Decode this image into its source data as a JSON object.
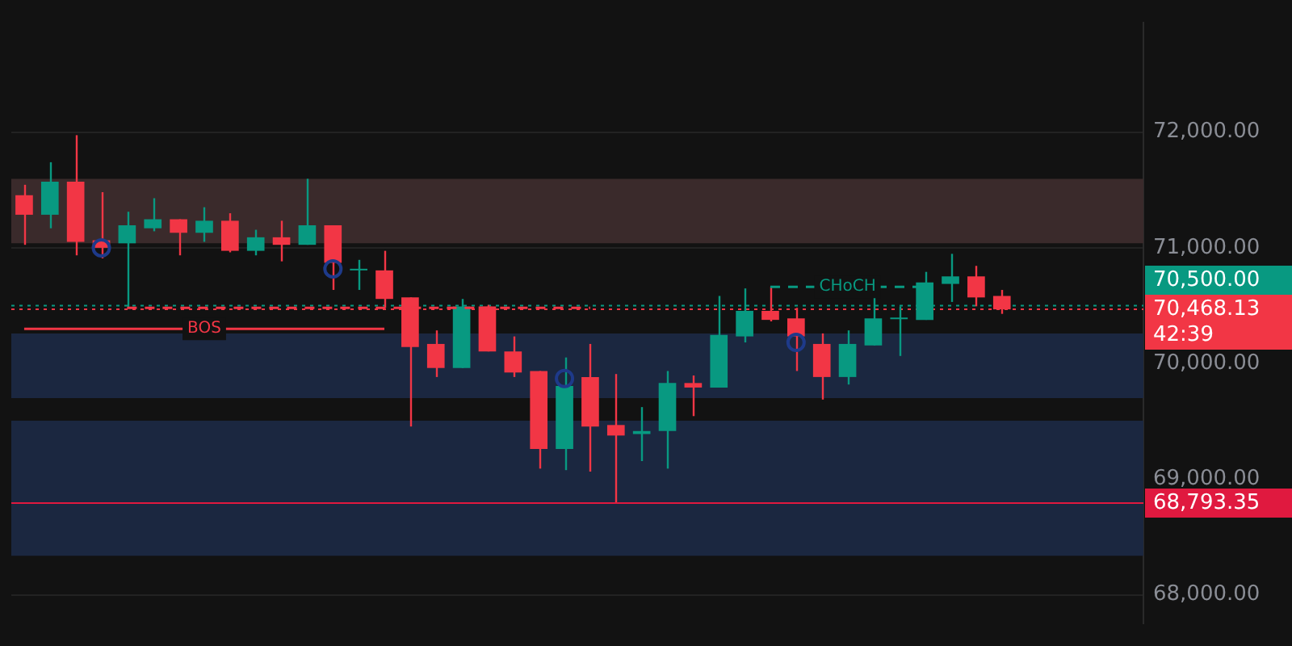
{
  "chart_data": {
    "type": "candlestick",
    "categories": [
      null,
      null,
      null,
      null,
      null,
      null,
      null,
      null,
      null,
      null,
      null,
      null,
      null,
      null,
      null,
      null,
      null,
      null,
      null,
      null,
      null,
      null,
      null,
      null,
      null,
      null,
      null,
      null,
      null,
      null,
      null,
      null,
      null,
      null,
      null,
      null,
      null,
      null,
      null,
      null,
      null,
      null,
      null,
      null
    ],
    "ohlc": [
      [
        71455,
        71545,
        71026,
        71286
      ],
      [
        71286,
        71740,
        71169,
        71571
      ],
      [
        71571,
        71974,
        70935,
        71052
      ],
      [
        71065,
        71481,
        70909,
        71000
      ],
      [
        71039,
        71312,
        70481,
        71195
      ],
      [
        71169,
        71429,
        71143,
        71247
      ],
      [
        71247,
        71247,
        70935,
        71130
      ],
      [
        71130,
        71351,
        71052,
        71234
      ],
      [
        71234,
        71299,
        70961,
        70974
      ],
      [
        70974,
        71156,
        70935,
        71091
      ],
      [
        71091,
        71234,
        70883,
        71026
      ],
      [
        71026,
        71597,
        71026,
        71195
      ],
      [
        71195,
        71195,
        70636,
        70870
      ],
      [
        70805,
        70896,
        70636,
        70818
      ],
      [
        70805,
        70974,
        70481,
        70558
      ],
      [
        70571,
        70571,
        69455,
        70143
      ],
      [
        70169,
        70286,
        69883,
        69961
      ],
      [
        69961,
        70558,
        69961,
        70494
      ],
      [
        70494,
        70506,
        70104,
        70104
      ],
      [
        70104,
        70234,
        69883,
        69922
      ],
      [
        69935,
        69935,
        69091,
        69260
      ],
      [
        69260,
        70052,
        69078,
        69805
      ],
      [
        69883,
        70169,
        69065,
        69455
      ],
      [
        69468,
        69909,
        68800,
        69377
      ],
      [
        69390,
        69623,
        69156,
        69416
      ],
      [
        69416,
        69935,
        69091,
        69831
      ],
      [
        69831,
        69896,
        69545,
        69792
      ],
      [
        69792,
        70584,
        69792,
        70247
      ],
      [
        70234,
        70649,
        70182,
        70455
      ],
      [
        70455,
        70662,
        70364,
        70377
      ],
      [
        70390,
        70481,
        69935,
        70234
      ],
      [
        70169,
        70260,
        69688,
        69883
      ],
      [
        69883,
        70286,
        69818,
        70169
      ],
      [
        70156,
        70571,
        70156,
        70390
      ],
      [
        70383,
        70494,
        70065,
        70390
      ],
      [
        70377,
        70792,
        70377,
        70701
      ],
      [
        70688,
        70948,
        70532,
        70753
      ],
      [
        70753,
        70844,
        70494,
        70571
      ],
      [
        70584,
        70636,
        70429,
        70468
      ],
      null,
      null,
      null,
      null,
      null
    ],
    "colors": [
      "#f23645",
      "#089981",
      "#f23645",
      "#f23645",
      "#089981",
      "#089981",
      "#f23645",
      "#089981",
      "#f23645",
      "#089981",
      "#f23645",
      "#089981",
      "#f23645",
      "#089981",
      "#f23645",
      "#f23645",
      "#f23645",
      "#089981",
      "#f23645",
      "#f23645",
      "#f23645",
      "#089981",
      "#f23645",
      "#f23645",
      "#089981",
      "#089981",
      "#f23645",
      "#089981",
      "#089981",
      "#f23645",
      "#f23645",
      "#f23645",
      "#089981",
      "#089981",
      "#089981",
      "#089981",
      "#089981",
      "#f23645",
      "#f23645",
      null,
      null,
      null,
      null,
      null
    ],
    "series": [
      {
        "type": "line",
        "name": "BOS",
        "color": "#f23645",
        "line_style": "solid",
        "values": [
          70299,
          70299,
          70299,
          70299,
          70299,
          70299,
          70299,
          70299,
          70299,
          70299,
          70299,
          70299,
          70299,
          70299,
          70299,
          null,
          null,
          null,
          null,
          null,
          null,
          null,
          null,
          null,
          null,
          null,
          null,
          null,
          null,
          null,
          null,
          null,
          null,
          null,
          null,
          null,
          null,
          null,
          null,
          null,
          null,
          null,
          null,
          null
        ]
      },
      {
        "type": "line",
        "color": "#f23645",
        "line_style": "dashed",
        "values": [
          null,
          null,
          null,
          null,
          70481,
          70481,
          70481,
          70481,
          70481,
          70481,
          70481,
          70481,
          70481,
          70481,
          70481,
          70481,
          70481,
          70481,
          70481,
          70481,
          70481,
          70481,
          70481,
          null,
          null,
          null,
          null,
          null,
          null,
          null,
          null,
          null,
          null,
          null,
          null,
          null,
          null,
          null,
          null,
          null,
          null,
          null,
          null,
          null
        ]
      },
      {
        "type": "line",
        "name": "CHoCH",
        "color": "#089981",
        "line_style": "dashed",
        "values": [
          null,
          null,
          null,
          null,
          null,
          null,
          null,
          null,
          null,
          null,
          null,
          null,
          null,
          null,
          null,
          null,
          null,
          null,
          null,
          null,
          null,
          null,
          null,
          null,
          null,
          null,
          null,
          null,
          null,
          70662,
          70662,
          70662,
          70662,
          70662,
          70662,
          70662,
          null,
          null,
          null,
          null,
          null,
          null,
          null,
          null
        ]
      },
      {
        "type": "scatter",
        "color": "#1e3a8a",
        "marker": "circle",
        "values": [
          null,
          null,
          null,
          71000,
          null,
          null,
          null,
          null,
          null,
          null,
          null,
          null,
          70818,
          null,
          null,
          null,
          null,
          null,
          null,
          null,
          null,
          69870,
          null,
          null,
          null,
          null,
          null,
          null,
          null,
          null,
          70182,
          null,
          null,
          null,
          null,
          null,
          null,
          null,
          null,
          null,
          null,
          null,
          null,
          null
        ]
      }
    ],
    "bands": [
      {
        "axis": "y",
        "from": 71039,
        "to": 71597,
        "color": "#3a2a2b"
      },
      {
        "axis": "y",
        "from": 69701,
        "to": 70260,
        "color": "#1b2740"
      },
      {
        "axis": "y",
        "from": 68338,
        "to": 69506,
        "color": "#1b2740"
      }
    ],
    "ref_lines": [
      {
        "axis": "y",
        "value": 70500,
        "label": "70,500.00",
        "color": "#089981",
        "line_style": "dotted"
      },
      {
        "axis": "y",
        "value": 68793.35,
        "label": "68,793.35",
        "color": "#e0193f",
        "line_style": "solid"
      },
      {
        "axis": "y",
        "value": 70468.13,
        "label": "70,468.13",
        "color": "#f23645",
        "line_style": "dotted"
      }
    ],
    "annotations": [
      "42:39"
    ],
    "ylim": [
      67750,
      72950
    ],
    "yticks": [
      {
        "value": 68000,
        "label": "68,000.00"
      },
      {
        "value": 69000,
        "label": "69,000.00"
      },
      {
        "value": 70000,
        "label": "70,000.00"
      },
      {
        "value": 71000,
        "label": "71,000.00"
      },
      {
        "value": 72000,
        "label": "72,000.00"
      }
    ],
    "tick_labels": "y",
    "grid": "y"
  }
}
